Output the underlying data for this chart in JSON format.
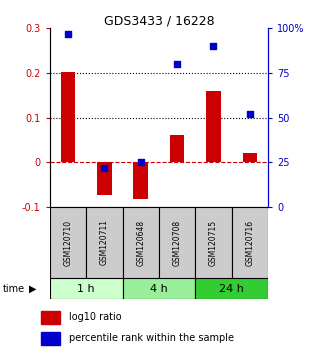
{
  "title": "GDS3433 / 16228",
  "samples": [
    "GSM120710",
    "GSM120711",
    "GSM120648",
    "GSM120708",
    "GSM120715",
    "GSM120716"
  ],
  "log10_ratio": [
    0.202,
    -0.072,
    -0.082,
    0.062,
    0.16,
    0.02
  ],
  "percentile_rank": [
    97,
    22,
    25,
    80,
    90,
    52
  ],
  "ylim_left": [
    -0.1,
    0.3
  ],
  "ylim_right": [
    0,
    100
  ],
  "yticks_left": [
    -0.1,
    0.0,
    0.1,
    0.2,
    0.3
  ],
  "yticks_right": [
    0,
    25,
    50,
    75,
    100
  ],
  "ytick_labels_left": [
    "-0.1",
    "0",
    "0.1",
    "0.2",
    "0.3"
  ],
  "ytick_labels_right": [
    "0",
    "25",
    "50",
    "75",
    "100%"
  ],
  "hlines_dotted": [
    0.1,
    0.2
  ],
  "hline_dashed": 0.0,
  "bar_color": "#cc0000",
  "dot_color": "#0000cc",
  "time_groups": [
    {
      "label": "1 h",
      "start": 0,
      "end": 2,
      "color": "#ccffcc"
    },
    {
      "label": "4 h",
      "start": 2,
      "end": 4,
      "color": "#99ee99"
    },
    {
      "label": "24 h",
      "start": 4,
      "end": 6,
      "color": "#33cc33"
    }
  ],
  "legend_bar_label": "log10 ratio",
  "legend_dot_label": "percentile rank within the sample",
  "sample_box_color": "#cccccc",
  "time_arrow_label": "time"
}
